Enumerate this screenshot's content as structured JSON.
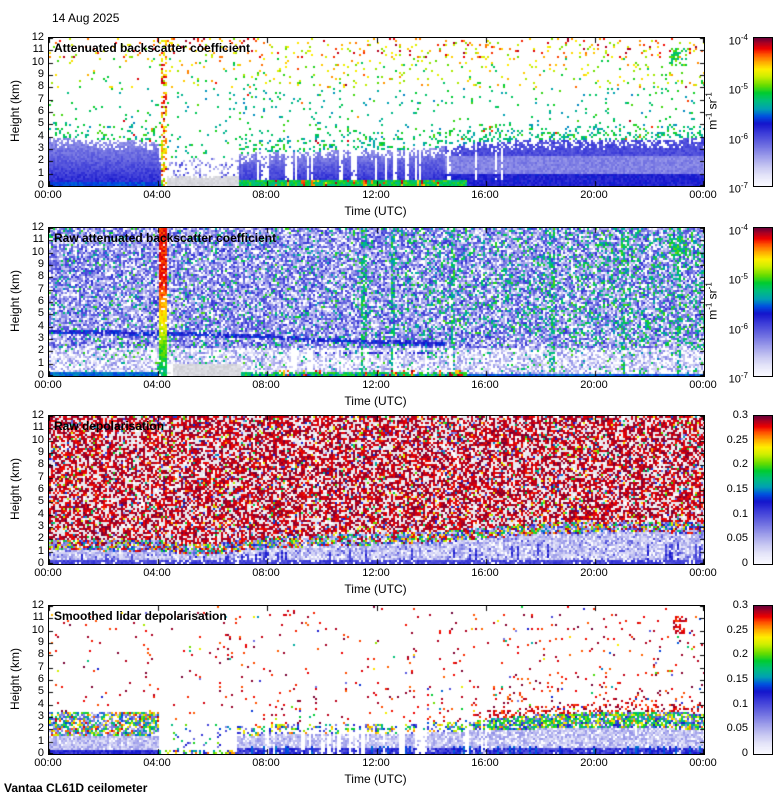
{
  "page": {
    "date_title": "14 Aug 2025",
    "footer": "Vantaa CL61D ceilometer"
  },
  "colormap": {
    "stops": [
      [
        0.0,
        "#f8f8ff"
      ],
      [
        0.06,
        "#e8e8fa"
      ],
      [
        0.13,
        "#c6c6f2"
      ],
      [
        0.2,
        "#9c9cea"
      ],
      [
        0.28,
        "#6a6ae0"
      ],
      [
        0.36,
        "#3a3ad8"
      ],
      [
        0.42,
        "#1414cc"
      ],
      [
        0.47,
        "#0050e0"
      ],
      [
        0.52,
        "#00a0b4"
      ],
      [
        0.58,
        "#00c078"
      ],
      [
        0.63,
        "#00cc30"
      ],
      [
        0.68,
        "#66dd00"
      ],
      [
        0.74,
        "#ccee00"
      ],
      [
        0.79,
        "#ffee00"
      ],
      [
        0.84,
        "#ffaa00"
      ],
      [
        0.89,
        "#ff5500"
      ],
      [
        0.93,
        "#ee0000"
      ],
      [
        0.97,
        "#aa0022"
      ],
      [
        1.0,
        "#6e0036"
      ]
    ]
  },
  "chart_data": [
    {
      "type": "heatmap",
      "title": "Attenuated backscatter coefficient",
      "xlabel": "Time (UTC)",
      "ylabel": "Height (km)",
      "x_ticks": [
        "00:00",
        "04:00",
        "08:00",
        "12:00",
        "16:00",
        "20:00",
        "00:00"
      ],
      "x_range_hours": [
        0,
        24
      ],
      "y_ticks": [
        "0",
        "1",
        "2",
        "3",
        "4",
        "5",
        "6",
        "7",
        "8",
        "9",
        "10",
        "11",
        "12"
      ],
      "ylim_km": [
        0,
        12
      ],
      "colorbar": {
        "scale": "log",
        "range": [
          "1e-7",
          "1e-4"
        ],
        "ticks": [
          {
            "text": "10",
            "sup": "-4"
          },
          {
            "text": "10",
            "sup": "-5"
          },
          {
            "text": "10",
            "sup": "-6"
          },
          {
            "text": "10",
            "sup": "-7"
          }
        ],
        "unit_segments": [
          {
            "text": "m"
          },
          {
            "sup": "-1"
          },
          {
            "text": " sr"
          },
          {
            "sup": "-1"
          }
        ]
      },
      "features": {
        "background": "white above boundary layer",
        "aerosol_layer": "solid blue layer from surface to ~2.5-4 km all day",
        "precipitation_streak": "orange/red vertical streak at ~04:15 up to 12 km",
        "fog_period": "light gray region below ~1 km from ~04:20 to ~07:00",
        "low_cloud": "green band with red/orange clumps near surface ~07:00-15:00",
        "speckle_noise": "sparse green/teal dots aloft, yellow/orange near 8-12 km",
        "green_patch": "bright green cluster at ~23:00, 10-11 km"
      },
      "gen": {
        "kind": "bs_smooth",
        "seed": 101,
        "layer_top_km": [
          [
            0,
            3.9
          ],
          [
            2,
            3.75
          ],
          [
            4.0,
            3.6
          ],
          [
            4.05,
            3.6
          ],
          [
            4.1,
            0
          ],
          [
            6.88,
            0
          ],
          [
            6.95,
            2.6
          ],
          [
            8,
            2.8
          ],
          [
            9.5,
            2.7
          ],
          [
            11,
            3.0
          ],
          [
            12.5,
            2.9
          ],
          [
            14,
            3.1
          ],
          [
            15,
            3.3
          ],
          [
            16,
            3.6
          ],
          [
            18,
            3.7
          ],
          [
            20,
            3.8
          ],
          [
            22,
            3.8
          ],
          [
            24,
            3.9
          ]
        ],
        "precip_streak_t": [
          4.08,
          4.35
        ],
        "fog_gray_t": [
          4.35,
          6.95
        ],
        "cloud_band_t": [
          6.9,
          15.3
        ],
        "clump_t": [
          8.3,
          15.2
        ],
        "gap_t": [
          7.4,
          17.0
        ],
        "gap_n": 26,
        "green_patch": {
          "t": [
            22.7,
            23.35
          ],
          "h": [
            9.7,
            11.2
          ]
        }
      }
    },
    {
      "type": "heatmap",
      "title": "Raw attenuated backscatter coefficient",
      "xlabel": "Time (UTC)",
      "ylabel": "Height (km)",
      "x_ticks": [
        "00:00",
        "04:00",
        "08:00",
        "12:00",
        "16:00",
        "20:00",
        "00:00"
      ],
      "x_range_hours": [
        0,
        24
      ],
      "y_ticks": [
        "0",
        "1",
        "2",
        "3",
        "4",
        "5",
        "6",
        "7",
        "8",
        "9",
        "10",
        "11",
        "12"
      ],
      "ylim_km": [
        0,
        12
      ],
      "colorbar": {
        "scale": "log",
        "range": [
          "1e-7",
          "1e-4"
        ],
        "ticks": [
          {
            "text": "10",
            "sup": "-4"
          },
          {
            "text": "10",
            "sup": "-5"
          },
          {
            "text": "10",
            "sup": "-6"
          },
          {
            "text": "10",
            "sup": "-7"
          }
        ],
        "unit_segments": [
          {
            "text": "m"
          },
          {
            "sup": "-1"
          },
          {
            "text": " sr"
          },
          {
            "sup": "-1"
          }
        ]
      },
      "features": {
        "background": "dense blue/white speckle noise everywhere, greener upper-right",
        "dark_band": "darker blue wavy aerosol band descending from ~3.6 to ~2.6 km (00:00-14:00)",
        "precipitation_streak": "yellow/orange full-height streak at ~04:15",
        "green_streaks": "greenish vertical streaks near 11:30, 12:30, 14:45, 18:20, 21:00, 23:00",
        "fog_period": "light gray below ~1 km from ~04:20 to ~07:00",
        "low_cloud": "green band with red clumps near surface ~07:00-15:00",
        "green_patch": "bright green cluster at ~23:00, 10-11 km"
      },
      "gen": {
        "kind": "bs_raw",
        "seed": 202,
        "dark_band_km": [
          [
            0,
            3.6
          ],
          [
            2,
            3.5
          ],
          [
            4,
            3.45
          ],
          [
            6,
            3.35
          ],
          [
            8,
            3.2
          ],
          [
            10,
            2.9
          ],
          [
            12,
            2.75
          ],
          [
            13,
            2.7
          ],
          [
            14.5,
            2.6
          ]
        ],
        "band2": {
          "t": [
            9.5,
            14.2
          ],
          "h": 1.85
        },
        "precip_streak_t": [
          4.06,
          4.32
        ],
        "fog_gray_t": [
          4.32,
          7.0
        ],
        "green_streaks_t": [
          [
            11.42,
            11.62
          ],
          [
            12.5,
            12.66
          ],
          [
            14.7,
            14.82
          ],
          [
            18.3,
            18.48
          ],
          [
            20.9,
            21.06
          ],
          [
            22.95,
            23.12
          ]
        ],
        "clump_t": [
          8.3,
          15.2
        ],
        "gap_t": [
          8.0,
          15.5
        ],
        "gap_n": 14,
        "green_patch": {
          "t": [
            22.7,
            23.35
          ],
          "h": [
            9.7,
            11.2
          ]
        }
      }
    },
    {
      "type": "heatmap",
      "title": "Raw depolarisation",
      "xlabel": "Time (UTC)",
      "ylabel": "Height (km)",
      "x_ticks": [
        "00:00",
        "04:00",
        "08:00",
        "12:00",
        "16:00",
        "20:00",
        "00:00"
      ],
      "x_range_hours": [
        0,
        24
      ],
      "y_ticks": [
        "0",
        "1",
        "2",
        "3",
        "4",
        "5",
        "6",
        "7",
        "8",
        "9",
        "10",
        "11",
        "12"
      ],
      "ylim_km": [
        0,
        12
      ],
      "colorbar": {
        "scale": "linear",
        "range": [
          0,
          0.3
        ],
        "ticks": [
          {
            "text": "0.3"
          },
          {
            "text": "0.25"
          },
          {
            "text": "0.2"
          },
          {
            "text": "0.15"
          },
          {
            "text": "0.1"
          },
          {
            "text": "0.05"
          },
          {
            "text": "0"
          }
        ],
        "unit_segments": null
      },
      "features": {
        "background": "dense maroon/purple speckle noise on light gray above the boundary layer",
        "transition": "rainbow speckle band at boundary-layer top (~1.2-3 km, rising through the day)",
        "low_layer": "pale lavender/blue below boundary-layer top, darker blue wisps near surface"
      },
      "gen": {
        "kind": "depol_raw",
        "seed": 303,
        "layer_top_km": [
          [
            0,
            1.55
          ],
          [
            2,
            1.5
          ],
          [
            4,
            1.45
          ],
          [
            5,
            1.2
          ],
          [
            6,
            1.15
          ],
          [
            7,
            1.5
          ],
          [
            8,
            1.7
          ],
          [
            10,
            1.9
          ],
          [
            12,
            2.0
          ],
          [
            14,
            2.15
          ],
          [
            16,
            2.5
          ],
          [
            18,
            2.85
          ],
          [
            20,
            3.0
          ],
          [
            22,
            3.0
          ],
          [
            24,
            2.9
          ]
        ],
        "wisp_t": [
          6.5,
          9.5
        ]
      }
    },
    {
      "type": "heatmap",
      "title": "Smoothed lidar depolarisation",
      "xlabel": "Time (UTC)",
      "ylabel": "Height (km)",
      "x_ticks": [
        "00:00",
        "04:00",
        "08:00",
        "12:00",
        "16:00",
        "20:00",
        "00:00"
      ],
      "x_range_hours": [
        0,
        24
      ],
      "y_ticks": [
        "0",
        "1",
        "2",
        "3",
        "4",
        "5",
        "6",
        "7",
        "8",
        "9",
        "10",
        "11",
        "12"
      ],
      "ylim_km": [
        0,
        12
      ],
      "colorbar": {
        "scale": "linear",
        "range": [
          0,
          0.3
        ],
        "ticks": [
          {
            "text": "0.3"
          },
          {
            "text": "0.25"
          },
          {
            "text": "0.2"
          },
          {
            "text": "0.15"
          },
          {
            "text": "0.1"
          },
          {
            "text": "0.05"
          },
          {
            "text": "0"
          }
        ],
        "unit_segments": null
      },
      "features": {
        "background": "white with sparse maroon speckles, denser at low heights after ~08:00",
        "left_band": "mixed blue/green/red speckle band 1.5-3.4 km before 04:00",
        "gap": "clear column ~04:05-04:30; mostly clear low levels until ~07:00",
        "mid_layer": "lavender layer below ~2 km 07:00-15:30 with colorful top edge",
        "right_band": "dense green/yellow/red band 2-3.4 km from ~16:00 to 24:00",
        "purple_patch": "maroon cluster at ~23:00, 10-11 km"
      },
      "gen": {
        "kind": "depol_smooth",
        "seed": 404,
        "left_band": {
          "t": [
            0,
            4.05
          ],
          "h": [
            1.45,
            3.4
          ]
        },
        "gap_t_full": [
          4.05,
          4.5
        ],
        "clear_t": [
          4.5,
          6.9
        ],
        "blt_km": [
          [
            6.9,
            1.9
          ],
          [
            9,
            2.0
          ],
          [
            11,
            2.1
          ],
          [
            13,
            2.05
          ],
          [
            15,
            2.2
          ],
          [
            15.5,
            2.3
          ]
        ],
        "right_band_top": [
          [
            15.5,
            2.6
          ],
          [
            16,
            2.8
          ],
          [
            17,
            3.0
          ],
          [
            18,
            3.2
          ],
          [
            20,
            3.4
          ],
          [
            22,
            3.4
          ],
          [
            24,
            3.3
          ]
        ],
        "right_band_bot": [
          [
            15.5,
            1.9
          ],
          [
            17,
            2.0
          ],
          [
            20,
            2.1
          ],
          [
            24,
            2.0
          ]
        ],
        "gap_t": [
          6.9,
          16.2
        ],
        "gap_n": 24,
        "purple_patch": {
          "t": [
            22.8,
            23.35
          ],
          "h": [
            9.7,
            11.15
          ]
        }
      }
    }
  ]
}
